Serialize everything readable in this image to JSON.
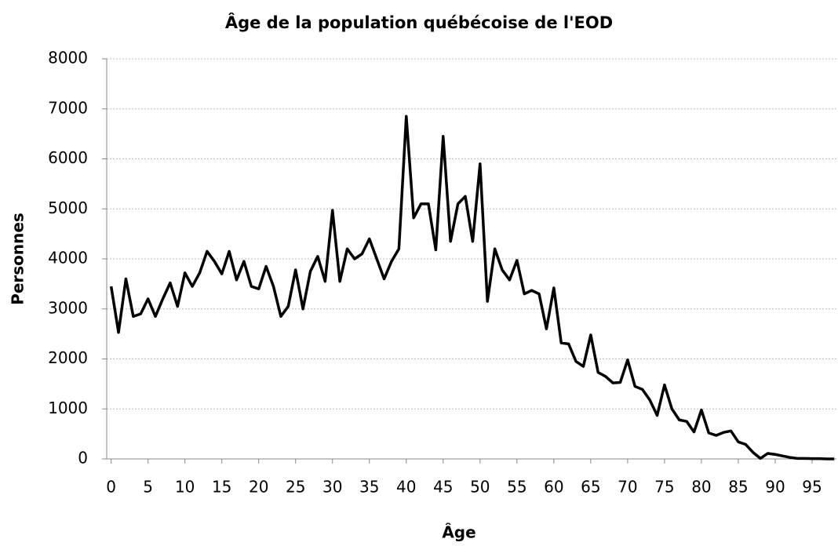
{
  "chart_data": {
    "type": "line",
    "title": "Âge de la population québécoise de l'EOD",
    "x_label": "Âge",
    "y_label": "Personnes",
    "x": [
      0,
      1,
      2,
      3,
      4,
      5,
      6,
      7,
      8,
      9,
      10,
      11,
      12,
      13,
      14,
      15,
      16,
      17,
      18,
      19,
      20,
      21,
      22,
      23,
      24,
      25,
      26,
      27,
      28,
      29,
      30,
      31,
      32,
      33,
      34,
      35,
      36,
      37,
      38,
      39,
      40,
      41,
      42,
      43,
      44,
      45,
      46,
      47,
      48,
      49,
      50,
      51,
      52,
      53,
      54,
      55,
      56,
      57,
      58,
      59,
      60,
      61,
      62,
      63,
      64,
      65,
      66,
      67,
      68,
      69,
      70,
      71,
      72,
      73,
      74,
      75,
      76,
      77,
      78,
      79,
      80,
      81,
      82,
      83,
      84,
      85,
      86,
      87,
      88,
      89,
      90,
      91,
      92,
      93,
      94,
      95,
      96,
      97,
      98
    ],
    "series": [
      {
        "name": "Personnes",
        "color": "#000000",
        "values": [
          3450,
          2530,
          3600,
          2850,
          2900,
          3200,
          2850,
          3200,
          3520,
          3050,
          3720,
          3450,
          3720,
          4150,
          3950,
          3700,
          4150,
          3580,
          3950,
          3450,
          3400,
          3850,
          3450,
          2850,
          3050,
          3780,
          3000,
          3750,
          4050,
          3550,
          4970,
          3550,
          4200,
          4000,
          4100,
          4400,
          4000,
          3600,
          3950,
          4200,
          6850,
          4820,
          5100,
          5100,
          4180,
          6450,
          4350,
          5100,
          5250,
          4350,
          5900,
          3150,
          4200,
          3780,
          3580,
          3970,
          3300,
          3370,
          3300,
          2600,
          3420,
          2320,
          2300,
          1950,
          1850,
          2480,
          1730,
          1650,
          1520,
          1530,
          1980,
          1450,
          1390,
          1180,
          870,
          1480,
          1000,
          780,
          750,
          540,
          980,
          520,
          470,
          530,
          560,
          340,
          290,
          130,
          10,
          110,
          90,
          60,
          30,
          10,
          10,
          5,
          5,
          0,
          0
        ]
      }
    ],
    "xlim": [
      -0.6,
      98.3
    ],
    "xticks": [
      0,
      5,
      10,
      15,
      20,
      25,
      30,
      35,
      40,
      45,
      50,
      55,
      60,
      65,
      70,
      75,
      80,
      85,
      90,
      95
    ],
    "ylim": [
      0,
      8000
    ],
    "yticks": [
      0,
      1000,
      2000,
      3000,
      4000,
      5000,
      6000,
      7000,
      8000
    ],
    "grid": true
  }
}
